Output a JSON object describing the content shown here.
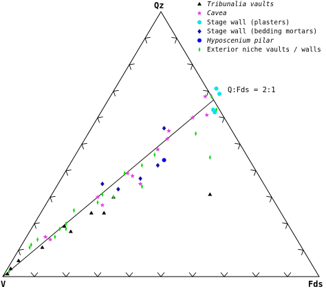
{
  "chart_data": {
    "type": "scatter",
    "subtype": "ternary",
    "vertices": {
      "top": "Qz",
      "left": "V",
      "right": "Fds"
    },
    "grid": false,
    "legend_position": "top-right",
    "reference_line": {
      "label": "Q:Fds = 2:1",
      "from": {
        "Qz": 0,
        "Fds": 0
      },
      "to": {
        "Qz": 66.7,
        "Fds": 33.3
      }
    },
    "series": [
      {
        "name": "Tribunalia vaults",
        "italic": true,
        "marker": "triangle",
        "color": "#000000",
        "points": [
          {
            "Qz": 1,
            "Fds": 1
          },
          {
            "Qz": 3,
            "Fds": 1
          },
          {
            "Qz": 6,
            "Fds": 2
          },
          {
            "Qz": 11,
            "Fds": 7
          },
          {
            "Qz": 19,
            "Fds": 10
          },
          {
            "Qz": 17,
            "Fds": 13
          },
          {
            "Qz": 24,
            "Fds": 16
          },
          {
            "Qz": 24,
            "Fds": 20
          },
          {
            "Qz": 30,
            "Fds": 20
          },
          {
            "Qz": 31,
            "Fds": 50
          }
        ]
      },
      {
        "name": "Cavea",
        "italic": true,
        "marker": "star",
        "color": "#e040e0",
        "points": [
          {
            "Qz": 15,
            "Fds": 6
          },
          {
            "Qz": 14,
            "Fds": 8
          },
          {
            "Qz": 27,
            "Fds": 18
          },
          {
            "Qz": 30,
            "Fds": 15
          },
          {
            "Qz": 39,
            "Fds": 20
          },
          {
            "Qz": 38,
            "Fds": 22
          },
          {
            "Qz": 35,
            "Fds": 26
          },
          {
            "Qz": 48,
            "Fds": 25
          },
          {
            "Qz": 52,
            "Fds": 26
          },
          {
            "Qz": 55,
            "Fds": 25
          },
          {
            "Qz": 60,
            "Fds": 30
          },
          {
            "Qz": 61,
            "Fds": 34
          },
          {
            "Qz": 68,
            "Fds": 30
          }
        ]
      },
      {
        "name": "Stage wall (plasters)",
        "marker": "circle",
        "color": "#00e5ee",
        "points": [
          {
            "Qz": 71,
            "Fds": 32
          },
          {
            "Qz": 69,
            "Fds": 34
          },
          {
            "Qz": 63,
            "Fds": 35
          },
          {
            "Qz": 62,
            "Fds": 36
          }
        ]
      },
      {
        "name": "Stage wall (bedding mortars)",
        "marker": "diamond",
        "color": "#1010a0",
        "points": [
          {
            "Qz": 35,
            "Fds": 14
          },
          {
            "Qz": 33,
            "Fds": 20
          },
          {
            "Qz": 37,
            "Fds": 25
          },
          {
            "Qz": 42,
            "Fds": 28
          },
          {
            "Qz": 56,
            "Fds": 23
          }
        ]
      },
      {
        "name": "Hyposcenium pilar",
        "italic": true,
        "marker": "circle",
        "color": "#0000ee",
        "points": [
          {
            "Qz": 44,
            "Fds": 29
          }
        ]
      },
      {
        "name": "Exterior niche vaults / walls",
        "marker": "thin-diamond",
        "color": "#00e000",
        "points": [
          {
            "Qz": 2,
            "Fds": 1
          },
          {
            "Qz": 11,
            "Fds": 3
          },
          {
            "Qz": 12,
            "Fds": 3
          },
          {
            "Qz": 14,
            "Fds": 4
          },
          {
            "Qz": 15,
            "Fds": 9
          },
          {
            "Qz": 18,
            "Fds": 9
          },
          {
            "Qz": 18,
            "Fds": 11
          },
          {
            "Qz": 20,
            "Fds": 10
          },
          {
            "Qz": 25,
            "Fds": 10
          },
          {
            "Qz": 28,
            "Fds": 16
          },
          {
            "Qz": 31,
            "Fds": 16
          },
          {
            "Qz": 30,
            "Fds": 20
          },
          {
            "Qz": 34,
            "Fds": 27
          },
          {
            "Qz": 39,
            "Fds": 19
          },
          {
            "Qz": 42,
            "Fds": 23
          },
          {
            "Qz": 46,
            "Fds": 25
          },
          {
            "Qz": 54,
            "Fds": 34
          },
          {
            "Qz": 63,
            "Fds": 36
          },
          {
            "Qz": 68,
            "Fds": 32
          },
          {
            "Qz": 45,
            "Fds": 43
          }
        ]
      }
    ]
  }
}
